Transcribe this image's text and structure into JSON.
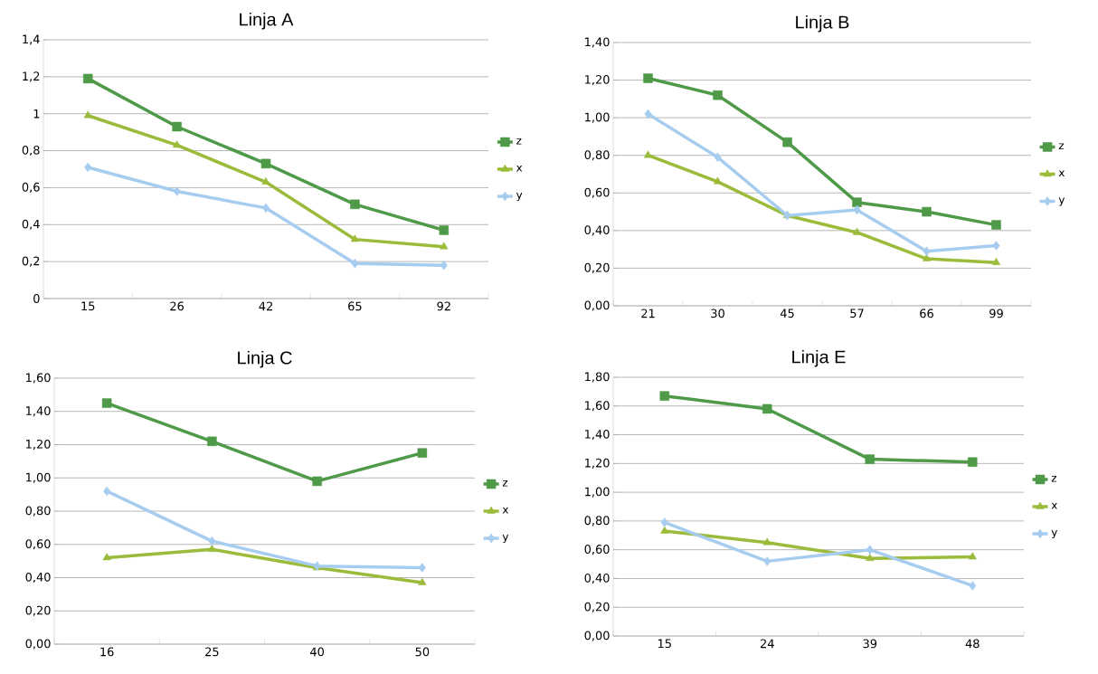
{
  "chart_data": [
    {
      "type": "line",
      "title": "Linja A",
      "categories": [
        "15",
        "26",
        "42",
        "65",
        "92"
      ],
      "ylim": [
        0,
        1.4
      ],
      "yticks": [
        0,
        {
          "value": 0.2,
          "label": "0,2"
        },
        {
          "value": 0.4,
          "label": "0,4"
        },
        {
          "value": 0.6,
          "label": "0,6"
        },
        {
          "value": 0.8,
          "label": "0,8"
        },
        1,
        {
          "value": 1.2,
          "label": "1,2"
        },
        {
          "value": 1.4,
          "label": "1,4"
        }
      ],
      "grid": "y",
      "legend": "right",
      "series": [
        {
          "name": "z",
          "color": "#4e9a48",
          "marker": "square",
          "values": [
            1.19,
            0.93,
            0.73,
            0.51,
            0.37
          ]
        },
        {
          "name": "x",
          "color": "#9bbb3a",
          "marker": "triangle",
          "values": [
            0.99,
            0.83,
            0.63,
            0.32,
            0.28
          ]
        },
        {
          "name": "y",
          "color": "#a6cdef",
          "marker": "diamond",
          "values": [
            0.71,
            0.58,
            0.49,
            0.19,
            0.18
          ]
        }
      ]
    },
    {
      "type": "line",
      "title": "Linja B",
      "categories": [
        "21",
        "30",
        "45",
        "57",
        "66",
        "99"
      ],
      "ylim": [
        0,
        1.4
      ],
      "yticks": [
        {
          "value": 0,
          "label": "0,00"
        },
        {
          "value": 0.2,
          "label": "0,20"
        },
        {
          "value": 0.4,
          "label": "0,40"
        },
        {
          "value": 0.6,
          "label": "0,60"
        },
        {
          "value": 0.8,
          "label": "0,80"
        },
        {
          "value": 1,
          "label": "1,00"
        },
        {
          "value": 1.2,
          "label": "1,20"
        },
        {
          "value": 1.4,
          "label": "1,40"
        }
      ],
      "grid": "y",
      "legend": "right",
      "series": [
        {
          "name": "z",
          "color": "#4e9a48",
          "marker": "square",
          "values": [
            1.21,
            1.12,
            0.87,
            0.55,
            0.5,
            0.43
          ]
        },
        {
          "name": "x",
          "color": "#9bbb3a",
          "marker": "triangle",
          "values": [
            0.8,
            0.66,
            0.48,
            0.39,
            0.25,
            0.23
          ]
        },
        {
          "name": "y",
          "color": "#a6cdef",
          "marker": "diamond",
          "values": [
            1.02,
            0.79,
            0.48,
            0.51,
            0.29,
            0.32
          ]
        }
      ]
    },
    {
      "type": "line",
      "title": "Linja C",
      "categories": [
        "16",
        "25",
        "40",
        "50"
      ],
      "ylim": [
        0,
        1.6
      ],
      "yticks": [
        {
          "value": 0,
          "label": "0,00"
        },
        {
          "value": 0.2,
          "label": "0,20"
        },
        {
          "value": 0.4,
          "label": "0,40"
        },
        {
          "value": 0.6,
          "label": "0,60"
        },
        {
          "value": 0.8,
          "label": "0,80"
        },
        {
          "value": 1,
          "label": "1,00"
        },
        {
          "value": 1.2,
          "label": "1,20"
        },
        {
          "value": 1.4,
          "label": "1,40"
        },
        {
          "value": 1.6,
          "label": "1,60"
        }
      ],
      "grid": "y",
      "legend": "right",
      "series": [
        {
          "name": "z",
          "color": "#4e9a48",
          "marker": "square",
          "values": [
            1.45,
            1.22,
            0.98,
            1.15
          ]
        },
        {
          "name": "x",
          "color": "#9bbb3a",
          "marker": "triangle",
          "values": [
            0.52,
            0.57,
            0.46,
            0.37
          ]
        },
        {
          "name": "y",
          "color": "#a6cdef",
          "marker": "diamond",
          "values": [
            0.92,
            0.62,
            0.47,
            0.46
          ]
        }
      ]
    },
    {
      "type": "line",
      "title": "Linja E",
      "categories": [
        "15",
        "24",
        "39",
        "48"
      ],
      "ylim": [
        0,
        1.8
      ],
      "yticks": [
        {
          "value": 0,
          "label": "0,00"
        },
        {
          "value": 0.2,
          "label": "0,20"
        },
        {
          "value": 0.4,
          "label": "0,40"
        },
        {
          "value": 0.6,
          "label": "0,60"
        },
        {
          "value": 0.8,
          "label": "0,80"
        },
        {
          "value": 1,
          "label": "1,00"
        },
        {
          "value": 1.2,
          "label": "1,20"
        },
        {
          "value": 1.4,
          "label": "1,40"
        },
        {
          "value": 1.6,
          "label": "1,60"
        },
        {
          "value": 1.8,
          "label": "1,80"
        }
      ],
      "grid": "y",
      "legend": "right",
      "series": [
        {
          "name": "z",
          "color": "#4e9a48",
          "marker": "square",
          "values": [
            1.67,
            1.58,
            1.23,
            1.21
          ]
        },
        {
          "name": "x",
          "color": "#9bbb3a",
          "marker": "triangle",
          "values": [
            0.73,
            0.65,
            0.54,
            0.55
          ]
        },
        {
          "name": "y",
          "color": "#a6cdef",
          "marker": "diamond",
          "values": [
            0.79,
            0.52,
            0.6,
            0.35
          ]
        }
      ]
    }
  ]
}
